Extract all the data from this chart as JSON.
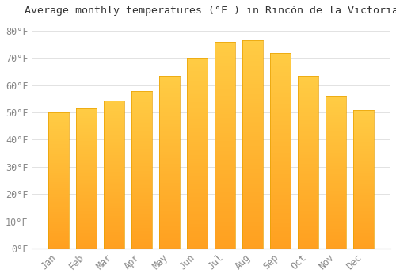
{
  "title": "Average monthly temperatures (°F ) in Rincón de la Victoria",
  "months": [
    "Jan",
    "Feb",
    "Mar",
    "Apr",
    "May",
    "Jun",
    "Jul",
    "Aug",
    "Sep",
    "Oct",
    "Nov",
    "Dec"
  ],
  "values": [
    50,
    51.5,
    54.5,
    58,
    63.5,
    70,
    76,
    76.5,
    72,
    63.5,
    56,
    51
  ],
  "bar_color_top": "#FFCC44",
  "bar_color_bottom": "#FFA020",
  "bar_edge_color": "#E8A000",
  "background_color": "#FFFFFF",
  "grid_color": "#DDDDDD",
  "yticks": [
    0,
    10,
    20,
    30,
    40,
    50,
    60,
    70,
    80
  ],
  "ylim": [
    0,
    84
  ],
  "title_fontsize": 9.5,
  "tick_fontsize": 8.5,
  "tick_color": "#888888",
  "title_color": "#333333",
  "font_family": "monospace",
  "bar_width": 0.75
}
